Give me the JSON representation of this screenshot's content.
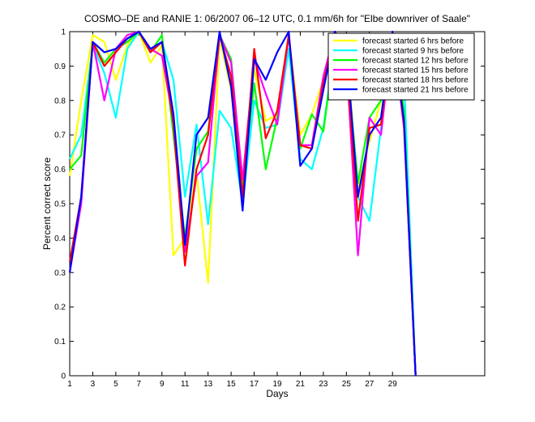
{
  "chart_data": {
    "type": "line",
    "title": "COSMO–DE and RANIE 1: 06/2007 06–12 UTC, 0.1 mm/6h for \"Elbe downriver of Saale\"",
    "xlabel": "Days",
    "ylabel": "Percent correct score",
    "xlim": [
      1,
      37
    ],
    "ylim": [
      0,
      1
    ],
    "xticks": [
      "1",
      "3",
      "5",
      "7",
      "9",
      "11",
      "13",
      "15",
      "17",
      "19",
      "21",
      "23",
      "25",
      "27",
      "29"
    ],
    "yticks": [
      "0",
      "0.1",
      "0.2",
      "0.3",
      "0.4",
      "0.5",
      "0.6",
      "0.7",
      "0.8",
      "0.9",
      "1"
    ],
    "grid": false,
    "legend_position": "top-right",
    "x": [
      1,
      2,
      3,
      4,
      5,
      6,
      7,
      8,
      9,
      10,
      11,
      12,
      13,
      14,
      15,
      16,
      17,
      18,
      19,
      20,
      21,
      22,
      23,
      24,
      25,
      26,
      27,
      28,
      29,
      30,
      31
    ],
    "series": [
      {
        "name": "forecast started 6 hrs before",
        "color": "#ffff00",
        "values": [
          0.58,
          0.8,
          0.99,
          0.97,
          0.86,
          0.96,
          1.0,
          0.91,
          0.96,
          0.35,
          0.4,
          0.59,
          0.27,
          0.98,
          0.83,
          0.56,
          0.89,
          0.74,
          0.76,
          0.99,
          0.7,
          0.76,
          0.86,
          0.99,
          0.95,
          0.55,
          0.68,
          0.8,
          1.0,
          0.85,
          0.0
        ]
      },
      {
        "name": "forecast started 9 hrs before",
        "color": "#00ffff",
        "values": [
          0.63,
          0.7,
          0.96,
          0.88,
          0.75,
          0.95,
          1.0,
          0.94,
          0.97,
          0.86,
          0.52,
          0.73,
          0.44,
          0.77,
          0.72,
          0.5,
          0.8,
          0.72,
          0.73,
          0.95,
          0.63,
          0.6,
          0.72,
          0.96,
          0.93,
          0.52,
          0.45,
          0.72,
          1.0,
          0.87,
          0.0
        ]
      },
      {
        "name": "forecast started 12 hrs before",
        "color": "#00ff00",
        "values": [
          0.6,
          0.64,
          0.97,
          0.91,
          0.95,
          0.97,
          1.0,
          0.94,
          0.99,
          0.7,
          0.4,
          0.66,
          0.71,
          0.99,
          0.92,
          0.55,
          0.85,
          0.6,
          0.75,
          0.99,
          0.66,
          0.76,
          0.71,
          0.96,
          0.92,
          0.56,
          0.75,
          0.8,
          0.99,
          0.77,
          0.0
        ]
      },
      {
        "name": "forecast started 15 hrs before",
        "color": "#ff00ff",
        "values": [
          0.3,
          0.5,
          0.97,
          0.8,
          0.95,
          0.99,
          1.0,
          0.95,
          0.93,
          0.74,
          0.36,
          0.58,
          0.62,
          0.99,
          0.91,
          0.57,
          0.92,
          0.82,
          0.73,
          0.99,
          0.67,
          0.67,
          0.87,
          1.0,
          0.92,
          0.35,
          0.75,
          0.7,
          1.0,
          0.72,
          0.0
        ]
      },
      {
        "name": "forecast started 18 hrs before",
        "color": "#ff0000",
        "values": [
          0.33,
          0.52,
          0.97,
          0.9,
          0.94,
          0.98,
          1.0,
          0.94,
          0.97,
          0.73,
          0.32,
          0.6,
          0.7,
          0.99,
          0.87,
          0.52,
          0.95,
          0.69,
          0.77,
          0.99,
          0.67,
          0.66,
          0.85,
          0.99,
          0.92,
          0.45,
          0.72,
          0.73,
          1.0,
          0.73,
          0.0
        ]
      },
      {
        "name": "forecast started 21 hrs before",
        "color": "#0000ff",
        "values": [
          0.3,
          0.52,
          0.97,
          0.94,
          0.95,
          0.98,
          1.0,
          0.95,
          0.97,
          0.76,
          0.38,
          0.7,
          0.75,
          1.0,
          0.84,
          0.48,
          0.92,
          0.86,
          0.94,
          1.0,
          0.61,
          0.66,
          0.83,
          1.0,
          0.95,
          0.52,
          0.7,
          0.75,
          1.0,
          0.74,
          0.0
        ]
      }
    ]
  }
}
